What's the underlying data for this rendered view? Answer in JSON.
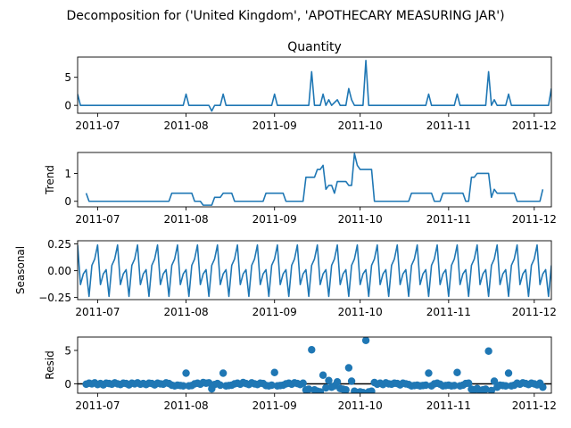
{
  "figure": {
    "title": "Decomposition for ('United Kingdom', 'APOTHECARY MEASURING JAR')"
  },
  "colors": {
    "series": "#1f77b4",
    "axis": "#000000",
    "zero_line": "#000000"
  },
  "chart_data": [
    {
      "type": "line",
      "title": "Quantity",
      "ylabel": "",
      "xlim": [
        "2011-06-24",
        "2011-12-07"
      ],
      "ylim": [
        -1.4,
        8.6
      ],
      "yticks": [
        0,
        5
      ],
      "xticks": [
        "2011-07-01",
        "2011-08-01",
        "2011-09-01",
        "2011-10-01",
        "2011-11-01",
        "2011-12-01"
      ],
      "xtick_labels": [
        "2011-07",
        "2011-08",
        "2011-09",
        "2011-10",
        "2011-11",
        "2011-12"
      ],
      "grid": false,
      "points": [
        [
          "2011-06-24",
          2
        ],
        [
          "2011-06-25",
          0
        ],
        [
          "2011-07-31",
          0
        ],
        [
          "2011-08-01",
          2
        ],
        [
          "2011-08-02",
          0
        ],
        [
          "2011-08-09",
          0
        ],
        [
          "2011-08-10",
          -1
        ],
        [
          "2011-08-11",
          0
        ],
        [
          "2011-08-13",
          0
        ],
        [
          "2011-08-14",
          2
        ],
        [
          "2011-08-15",
          0
        ],
        [
          "2011-08-31",
          0
        ],
        [
          "2011-09-01",
          2
        ],
        [
          "2011-09-02",
          0
        ],
        [
          "2011-09-13",
          0
        ],
        [
          "2011-09-14",
          6
        ],
        [
          "2011-09-15",
          0
        ],
        [
          "2011-09-17",
          0
        ],
        [
          "2011-09-18",
          2
        ],
        [
          "2011-09-19",
          0
        ],
        [
          "2011-09-20",
          1
        ],
        [
          "2011-09-21",
          0
        ],
        [
          "2011-09-23",
          1
        ],
        [
          "2011-09-24",
          0
        ],
        [
          "2011-09-26",
          0
        ],
        [
          "2011-09-27",
          3
        ],
        [
          "2011-09-28",
          1
        ],
        [
          "2011-09-29",
          0
        ],
        [
          "2011-10-02",
          0
        ],
        [
          "2011-10-03",
          8
        ],
        [
          "2011-10-04",
          0
        ],
        [
          "2011-10-24",
          0
        ],
        [
          "2011-10-25",
          2
        ],
        [
          "2011-10-26",
          0
        ],
        [
          "2011-11-03",
          0
        ],
        [
          "2011-11-04",
          2
        ],
        [
          "2011-11-05",
          0
        ],
        [
          "2011-11-14",
          0
        ],
        [
          "2011-11-15",
          6
        ],
        [
          "2011-11-16",
          0
        ],
        [
          "2011-11-17",
          1
        ],
        [
          "2011-11-18",
          0
        ],
        [
          "2011-11-21",
          0
        ],
        [
          "2011-11-22",
          2
        ],
        [
          "2011-11-23",
          0
        ],
        [
          "2011-12-06",
          0
        ],
        [
          "2011-12-07",
          3
        ]
      ]
    },
    {
      "type": "line",
      "title": "",
      "ylabel": "Trend",
      "xlim": [
        "2011-06-24",
        "2011-12-07"
      ],
      "ylim": [
        -0.2,
        1.75
      ],
      "yticks": [
        0,
        1
      ],
      "xticks": [
        "2011-07-01",
        "2011-08-01",
        "2011-09-01",
        "2011-10-01",
        "2011-11-01",
        "2011-12-01"
      ],
      "xtick_labels": [
        "2011-07",
        "2011-08",
        "2011-09",
        "2011-10",
        "2011-11",
        "2011-12"
      ],
      "grid": false,
      "points": [
        [
          "2011-06-27",
          0.29
        ],
        [
          "2011-06-28",
          0
        ],
        [
          "2011-07-26",
          0
        ],
        [
          "2011-07-27",
          0.29
        ],
        [
          "2011-08-03",
          0.29
        ],
        [
          "2011-08-04",
          0
        ],
        [
          "2011-08-06",
          0
        ],
        [
          "2011-08-07",
          -0.14
        ],
        [
          "2011-08-10",
          -0.14
        ],
        [
          "2011-08-11",
          0.14
        ],
        [
          "2011-08-13",
          0.14
        ],
        [
          "2011-08-14",
          0.29
        ],
        [
          "2011-08-17",
          0.29
        ],
        [
          "2011-08-18",
          0
        ],
        [
          "2011-08-28",
          0
        ],
        [
          "2011-08-29",
          0.29
        ],
        [
          "2011-09-04",
          0.29
        ],
        [
          "2011-09-05",
          0
        ],
        [
          "2011-09-11",
          0
        ],
        [
          "2011-09-12",
          0.86
        ],
        [
          "2011-09-15",
          0.86
        ],
        [
          "2011-09-16",
          1.14
        ],
        [
          "2011-09-17",
          1.14
        ],
        [
          "2011-09-18",
          1.29
        ],
        [
          "2011-09-19",
          0.43
        ],
        [
          "2011-09-20",
          0.57
        ],
        [
          "2011-09-21",
          0.57
        ],
        [
          "2011-09-22",
          0.29
        ],
        [
          "2011-09-23",
          0.71
        ],
        [
          "2011-09-26",
          0.71
        ],
        [
          "2011-09-27",
          0.57
        ],
        [
          "2011-09-28",
          0.57
        ],
        [
          "2011-09-29",
          1.71
        ],
        [
          "2011-09-30",
          1.29
        ],
        [
          "2011-10-01",
          1.14
        ],
        [
          "2011-10-05",
          1.14
        ],
        [
          "2011-10-06",
          0
        ],
        [
          "2011-10-18",
          0
        ],
        [
          "2011-10-19",
          0.29
        ],
        [
          "2011-10-26",
          0.29
        ],
        [
          "2011-10-27",
          0
        ],
        [
          "2011-10-29",
          0
        ],
        [
          "2011-10-30",
          0.29
        ],
        [
          "2011-11-06",
          0.29
        ],
        [
          "2011-11-07",
          0
        ],
        [
          "2011-11-08",
          0
        ],
        [
          "2011-11-09",
          0.86
        ],
        [
          "2011-11-10",
          0.86
        ],
        [
          "2011-11-11",
          1.0
        ],
        [
          "2011-11-15",
          1.0
        ],
        [
          "2011-11-16",
          0.14
        ],
        [
          "2011-11-17",
          0.43
        ],
        [
          "2011-11-18",
          0.29
        ],
        [
          "2011-11-24",
          0.29
        ],
        [
          "2011-11-25",
          0
        ],
        [
          "2011-12-03",
          0
        ],
        [
          "2011-12-04",
          0.43
        ]
      ]
    },
    {
      "type": "line",
      "title": "",
      "ylabel": "Seasonal",
      "xlim": [
        "2011-06-24",
        "2011-12-07"
      ],
      "ylim": [
        -0.27,
        0.28
      ],
      "yticks": [
        0.25,
        0.0,
        -0.25
      ],
      "ytick_labels": [
        "0.25",
        "0.00",
        "−0.25"
      ],
      "xticks": [
        "2011-07-01",
        "2011-08-01",
        "2011-09-01",
        "2011-10-01",
        "2011-11-01",
        "2011-12-01"
      ],
      "xtick_labels": [
        "2011-07",
        "2011-08",
        "2011-09",
        "2011-10",
        "2011-11",
        "2011-12"
      ],
      "grid": false,
      "period_days": 7,
      "first_date": "2011-06-24",
      "weekly_pattern": [
        0.24,
        -0.13,
        -0.03,
        0.01,
        -0.24,
        0.05,
        0.11
      ]
    },
    {
      "type": "scatter",
      "title": "",
      "ylabel": "Resid",
      "xlim": [
        "2011-06-24",
        "2011-12-07"
      ],
      "ylim": [
        -1.4,
        7.0
      ],
      "yticks": [
        0,
        5
      ],
      "xticks": [
        "2011-07-01",
        "2011-08-01",
        "2011-09-01",
        "2011-10-01",
        "2011-11-01",
        "2011-12-01"
      ],
      "xtick_labels": [
        "2011-07",
        "2011-08",
        "2011-09",
        "2011-10",
        "2011-11",
        "2011-12"
      ],
      "grid": false,
      "zero_line": 0,
      "points": [
        [
          "2011-06-27",
          -0.05
        ],
        [
          "2011-06-28",
          0.1
        ],
        [
          "2011-06-29",
          0.0
        ],
        [
          "2011-06-30",
          0.15
        ],
        [
          "2011-07-01",
          -0.1
        ],
        [
          "2011-07-02",
          0.05
        ],
        [
          "2011-07-03",
          -0.15
        ],
        [
          "2011-07-04",
          0.1
        ],
        [
          "2011-07-05",
          0.05
        ],
        [
          "2011-07-06",
          -0.05
        ],
        [
          "2011-07-07",
          0.15
        ],
        [
          "2011-07-08",
          0.0
        ],
        [
          "2011-07-09",
          -0.1
        ],
        [
          "2011-07-10",
          0.1
        ],
        [
          "2011-07-11",
          0.05
        ],
        [
          "2011-07-12",
          -0.15
        ],
        [
          "2011-07-13",
          0.1
        ],
        [
          "2011-07-14",
          0.0
        ],
        [
          "2011-07-15",
          0.15
        ],
        [
          "2011-07-16",
          -0.05
        ],
        [
          "2011-07-17",
          0.05
        ],
        [
          "2011-07-18",
          -0.1
        ],
        [
          "2011-07-19",
          0.1
        ],
        [
          "2011-07-20",
          0.05
        ],
        [
          "2011-07-21",
          -0.15
        ],
        [
          "2011-07-22",
          0.1
        ],
        [
          "2011-07-23",
          0.0
        ],
        [
          "2011-07-24",
          -0.05
        ],
        [
          "2011-07-25",
          0.15
        ],
        [
          "2011-07-26",
          0.05
        ],
        [
          "2011-07-27",
          -0.2
        ],
        [
          "2011-07-28",
          -0.3
        ],
        [
          "2011-07-29",
          -0.2
        ],
        [
          "2011-07-30",
          -0.25
        ],
        [
          "2011-07-31",
          -0.3
        ],
        [
          "2011-08-01",
          1.6
        ],
        [
          "2011-08-02",
          -0.3
        ],
        [
          "2011-08-03",
          -0.25
        ],
        [
          "2011-08-04",
          0.0
        ],
        [
          "2011-08-05",
          0.1
        ],
        [
          "2011-08-06",
          -0.05
        ],
        [
          "2011-08-07",
          0.2
        ],
        [
          "2011-08-08",
          0.1
        ],
        [
          "2011-08-09",
          0.15
        ],
        [
          "2011-08-10",
          -0.75
        ],
        [
          "2011-08-11",
          -0.1
        ],
        [
          "2011-08-12",
          0.05
        ],
        [
          "2011-08-13",
          -0.2
        ],
        [
          "2011-08-14",
          1.6
        ],
        [
          "2011-08-15",
          -0.3
        ],
        [
          "2011-08-16",
          -0.25
        ],
        [
          "2011-08-17",
          -0.2
        ],
        [
          "2011-08-18",
          0.0
        ],
        [
          "2011-08-19",
          0.1
        ],
        [
          "2011-08-20",
          -0.05
        ],
        [
          "2011-08-21",
          0.2
        ],
        [
          "2011-08-22",
          0.05
        ],
        [
          "2011-08-23",
          -0.1
        ],
        [
          "2011-08-24",
          0.15
        ],
        [
          "2011-08-25",
          0.0
        ],
        [
          "2011-08-26",
          -0.1
        ],
        [
          "2011-08-27",
          0.1
        ],
        [
          "2011-08-28",
          0.05
        ],
        [
          "2011-08-29",
          -0.25
        ],
        [
          "2011-08-30",
          -0.3
        ],
        [
          "2011-08-31",
          -0.2
        ],
        [
          "2011-09-01",
          1.7
        ],
        [
          "2011-09-02",
          -0.3
        ],
        [
          "2011-09-03",
          -0.25
        ],
        [
          "2011-09-04",
          -0.2
        ],
        [
          "2011-09-05",
          0.0
        ],
        [
          "2011-09-06",
          0.1
        ],
        [
          "2011-09-07",
          -0.05
        ],
        [
          "2011-09-08",
          0.15
        ],
        [
          "2011-09-09",
          0.05
        ],
        [
          "2011-09-10",
          -0.1
        ],
        [
          "2011-09-11",
          0.1
        ],
        [
          "2011-09-12",
          -0.9
        ],
        [
          "2011-09-13",
          -0.8
        ],
        [
          "2011-09-14",
          5.1
        ],
        [
          "2011-09-15",
          -0.9
        ],
        [
          "2011-09-16",
          -1.1
        ],
        [
          "2011-09-17",
          -1.2
        ],
        [
          "2011-09-18",
          1.3
        ],
        [
          "2011-09-19",
          -0.6
        ],
        [
          "2011-09-20",
          0.5
        ],
        [
          "2011-09-21",
          -0.5
        ],
        [
          "2011-09-22",
          -0.3
        ],
        [
          "2011-09-23",
          0.3
        ],
        [
          "2011-09-24",
          -0.7
        ],
        [
          "2011-09-25",
          -0.8
        ],
        [
          "2011-09-26",
          -0.9
        ],
        [
          "2011-09-27",
          2.4
        ],
        [
          "2011-09-28",
          0.4
        ],
        [
          "2011-09-29",
          -1.1
        ],
        [
          "2011-09-30",
          -1.3
        ],
        [
          "2011-10-01",
          -1.2
        ],
        [
          "2011-10-02",
          -1.3
        ],
        [
          "2011-10-03",
          6.5
        ],
        [
          "2011-10-04",
          -1.2
        ],
        [
          "2011-10-05",
          -1.1
        ],
        [
          "2011-10-06",
          0.2
        ],
        [
          "2011-10-07",
          -0.05
        ],
        [
          "2011-10-08",
          0.1
        ],
        [
          "2011-10-09",
          -0.1
        ],
        [
          "2011-10-10",
          0.15
        ],
        [
          "2011-10-11",
          0.0
        ],
        [
          "2011-10-12",
          -0.05
        ],
        [
          "2011-10-13",
          0.1
        ],
        [
          "2011-10-14",
          0.05
        ],
        [
          "2011-10-15",
          -0.15
        ],
        [
          "2011-10-16",
          0.1
        ],
        [
          "2011-10-17",
          0.0
        ],
        [
          "2011-10-18",
          -0.1
        ],
        [
          "2011-10-19",
          -0.3
        ],
        [
          "2011-10-20",
          -0.25
        ],
        [
          "2011-10-21",
          -0.2
        ],
        [
          "2011-10-22",
          -0.3
        ],
        [
          "2011-10-23",
          -0.25
        ],
        [
          "2011-10-24",
          -0.2
        ],
        [
          "2011-10-25",
          1.6
        ],
        [
          "2011-10-26",
          -0.3
        ],
        [
          "2011-10-27",
          0.0
        ],
        [
          "2011-10-28",
          0.1
        ],
        [
          "2011-10-29",
          -0.05
        ],
        [
          "2011-10-30",
          -0.3
        ],
        [
          "2011-10-31",
          -0.25
        ],
        [
          "2011-11-01",
          -0.2
        ],
        [
          "2011-11-02",
          -0.3
        ],
        [
          "2011-11-03",
          -0.25
        ],
        [
          "2011-11-04",
          1.7
        ],
        [
          "2011-11-05",
          -0.3
        ],
        [
          "2011-11-06",
          -0.2
        ],
        [
          "2011-11-07",
          0.05
        ],
        [
          "2011-11-08",
          0.1
        ],
        [
          "2011-11-09",
          -0.8
        ],
        [
          "2011-11-10",
          -0.9
        ],
        [
          "2011-11-11",
          -0.7
        ],
        [
          "2011-11-12",
          -1.0
        ],
        [
          "2011-11-13",
          -0.9
        ],
        [
          "2011-11-14",
          -0.8
        ],
        [
          "2011-11-15",
          4.9
        ],
        [
          "2011-11-16",
          -1.0
        ],
        [
          "2011-11-17",
          0.4
        ],
        [
          "2011-11-18",
          -0.5
        ],
        [
          "2011-11-19",
          -0.2
        ],
        [
          "2011-11-20",
          -0.25
        ],
        [
          "2011-11-21",
          -0.3
        ],
        [
          "2011-11-22",
          1.6
        ],
        [
          "2011-11-23",
          -0.3
        ],
        [
          "2011-11-24",
          -0.2
        ],
        [
          "2011-11-25",
          0.1
        ],
        [
          "2011-11-26",
          -0.05
        ],
        [
          "2011-11-27",
          0.15
        ],
        [
          "2011-11-28",
          0.05
        ],
        [
          "2011-11-29",
          -0.1
        ],
        [
          "2011-11-30",
          0.1
        ],
        [
          "2011-12-01",
          0.0
        ],
        [
          "2011-12-02",
          -0.15
        ],
        [
          "2011-12-03",
          0.1
        ],
        [
          "2011-12-04",
          -0.5
        ]
      ]
    }
  ]
}
